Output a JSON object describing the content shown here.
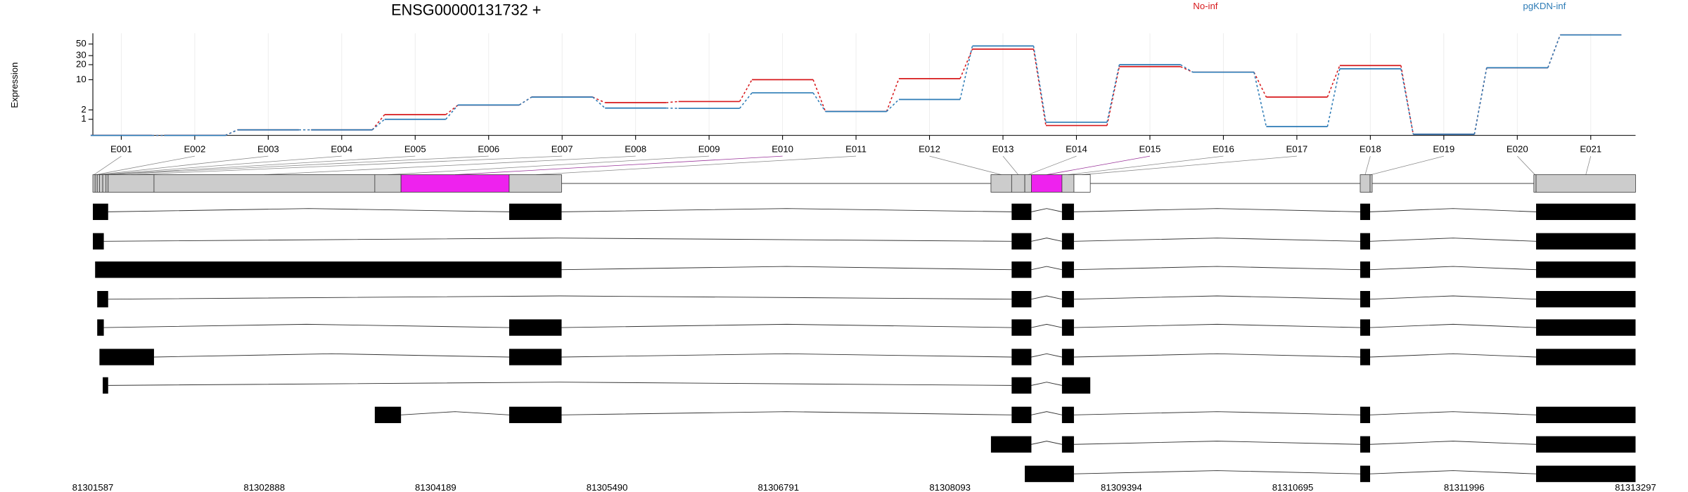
{
  "chart_data": {
    "type": "line",
    "title": "ENSG00000131732 +",
    "ylabel": "Expression",
    "yscale": "log1p",
    "ylim": [
      0,
      80
    ],
    "yticks": [
      1,
      2,
      10,
      20,
      30,
      50
    ],
    "grid": true,
    "categories": [
      "E001",
      "E002",
      "E003",
      "E004",
      "E005",
      "E006",
      "E007",
      "E008",
      "E009",
      "E010",
      "E011",
      "E012",
      "E013",
      "E014",
      "E015",
      "E016",
      "E017",
      "E018",
      "E019",
      "E020",
      "E021"
    ],
    "series": [
      {
        "name": "No-inf",
        "color": "#d7191c",
        "values": [
          0,
          0,
          0.27,
          0.27,
          1.44,
          2.7,
          4.2,
          3.1,
          3.3,
          10,
          1.8,
          10.5,
          40,
          0.53,
          18.3,
          14.2,
          4.2,
          19.2,
          0.05,
          17.4,
          74.5
        ]
      },
      {
        "name": "pgKDN-inf",
        "color": "#2c7bb6",
        "values": [
          0,
          0,
          0.27,
          0.27,
          1.0,
          2.7,
          4.2,
          2.24,
          2.2,
          5.25,
          1.8,
          3.7,
          46,
          0.76,
          20,
          14.2,
          0.46,
          16.6,
          0.05,
          17.4,
          74.5
        ]
      }
    ],
    "gene_model": {
      "xlim": [
        81301587,
        81313297
      ],
      "xticks": [
        81301587,
        81302888,
        81304189,
        81305490,
        81306791,
        81308093,
        81309394,
        81310695,
        81311996,
        81313297
      ],
      "exon_start": [
        81301587,
        81301604,
        81301620,
        81301637,
        81301662,
        81301687,
        81301703,
        81302051,
        81303727,
        81303926,
        81304747,
        81308404,
        81308561,
        81308661,
        81308711,
        81308943,
        81309034,
        81311207,
        81311282,
        81312525,
        81312542
      ],
      "exon_end": [
        81301604,
        81301620,
        81301637,
        81301662,
        81301687,
        81301703,
        81302051,
        81303727,
        81303926,
        81304747,
        81305145,
        81308561,
        81308661,
        81308711,
        81308943,
        81309034,
        81309158,
        81311282,
        81311298,
        81312542,
        81313297
      ],
      "exon_fill": [
        "#cccccc",
        "#cccccc",
        "#cccccc",
        "#cccccc",
        "#cccccc",
        "#cccccc",
        "#cccccc",
        "#cccccc",
        "#cccccc",
        "#ee22ee",
        "#cccccc",
        "#cccccc",
        "#cccccc",
        "#cccccc",
        "#ee22ee",
        "#cccccc",
        "#ffffff",
        "#cccccc",
        "#cccccc",
        "#cccccc",
        "#cccccc"
      ],
      "transcripts": [
        [
          [
            81301587,
            81301703
          ],
          [
            81304747,
            81305145
          ],
          [
            81308561,
            81308711
          ],
          [
            81308943,
            81309034
          ],
          [
            81311207,
            81311282
          ],
          [
            81312542,
            81313297
          ]
        ],
        [
          [
            81301587,
            81301670
          ],
          [
            81308561,
            81308711
          ],
          [
            81308943,
            81309034
          ],
          [
            81311207,
            81311282
          ],
          [
            81312542,
            81313297
          ]
        ],
        [
          [
            81301604,
            81305145
          ],
          [
            81308561,
            81308711
          ],
          [
            81308943,
            81309034
          ],
          [
            81311207,
            81311282
          ],
          [
            81312542,
            81313297
          ]
        ],
        [
          [
            81301620,
            81301703
          ],
          [
            81308561,
            81308711
          ],
          [
            81308943,
            81309034
          ],
          [
            81311207,
            81311282
          ],
          [
            81312542,
            81313297
          ]
        ],
        [
          [
            81301620,
            81301670
          ],
          [
            81304747,
            81305145
          ],
          [
            81308561,
            81308711
          ],
          [
            81308943,
            81309034
          ],
          [
            81311207,
            81311282
          ],
          [
            81312542,
            81313297
          ]
        ],
        [
          [
            81301637,
            81302051
          ],
          [
            81304747,
            81305145
          ],
          [
            81308561,
            81308711
          ],
          [
            81308943,
            81309034
          ],
          [
            81311207,
            81311282
          ],
          [
            81312542,
            81313297
          ]
        ],
        [
          [
            81301662,
            81301703
          ],
          [
            81308561,
            81308711
          ],
          [
            81308943,
            81309158
          ]
        ],
        [
          [
            81303727,
            81303926
          ],
          [
            81304747,
            81305145
          ],
          [
            81308561,
            81308711
          ],
          [
            81308943,
            81309034
          ],
          [
            81311207,
            81311282
          ],
          [
            81312542,
            81313297
          ]
        ],
        [
          [
            81308404,
            81308711
          ],
          [
            81308943,
            81309034
          ],
          [
            81311207,
            81311282
          ],
          [
            81312542,
            81313297
          ]
        ],
        [
          [
            81308661,
            81309034
          ],
          [
            81311207,
            81311282
          ],
          [
            81312542,
            81313297
          ]
        ]
      ]
    }
  }
}
